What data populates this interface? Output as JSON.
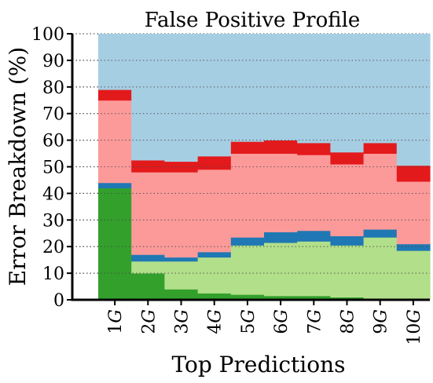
{
  "chart_data": {
    "type": "bar",
    "title": "False Positive Profile",
    "xlabel": "Top Predictions",
    "ylabel": "Error Breakdown (%)",
    "ylim": [
      0,
      100
    ],
    "yticks": [
      0,
      10,
      20,
      30,
      40,
      50,
      60,
      70,
      80,
      90,
      100
    ],
    "grid": true,
    "categories": [
      "1G",
      "2G",
      "3G",
      "4G",
      "5G",
      "6G",
      "7G",
      "8G",
      "9G",
      "10G"
    ],
    "category_tokens": [
      [
        "1",
        "G"
      ],
      [
        "2",
        "G"
      ],
      [
        "3",
        "G"
      ],
      [
        "4",
        "G"
      ],
      [
        "5",
        "G"
      ],
      [
        "6",
        "G"
      ],
      [
        "7",
        "G"
      ],
      [
        "8",
        "G"
      ],
      [
        "9",
        "G"
      ],
      [
        "10",
        "G"
      ]
    ],
    "series": [
      {
        "values": [
          42,
          10,
          4,
          2.5,
          2,
          1.5,
          1.5,
          1,
          0.5,
          0
        ],
        "color": "#33a02c"
      },
      {
        "values": [
          0,
          4.5,
          10.5,
          13.5,
          18.5,
          20,
          20.5,
          19.5,
          23,
          18.5
        ],
        "color": "#b2df8a"
      },
      {
        "values": [
          2,
          2.5,
          1.5,
          2,
          3,
          4,
          4,
          3.5,
          3,
          2.5
        ],
        "color": "#1f78b4"
      },
      {
        "values": [
          31,
          31,
          32,
          31,
          31.5,
          29.5,
          28.5,
          27,
          28.5,
          23.5
        ],
        "color": "#fb9a99"
      },
      {
        "values": [
          4,
          4.5,
          4,
          5,
          4.5,
          5,
          4.5,
          4.5,
          4,
          6
        ],
        "color": "#e31a1c"
      },
      {
        "values": [
          21,
          47.5,
          48,
          46,
          40.5,
          40,
          41,
          44.5,
          41,
          49.5
        ],
        "color": "#a6cee3"
      }
    ]
  }
}
